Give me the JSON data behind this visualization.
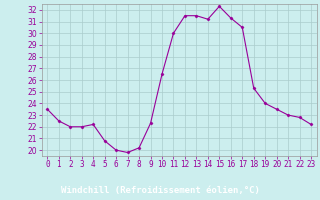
{
  "x": [
    0,
    1,
    2,
    3,
    4,
    5,
    6,
    7,
    8,
    9,
    10,
    11,
    12,
    13,
    14,
    15,
    16,
    17,
    18,
    19,
    20,
    21,
    22,
    23
  ],
  "y": [
    23.5,
    22.5,
    22.0,
    22.0,
    22.2,
    20.8,
    20.0,
    19.8,
    20.2,
    22.3,
    26.5,
    30.0,
    31.5,
    31.5,
    31.2,
    32.3,
    31.3,
    30.5,
    25.3,
    24.0,
    23.5,
    23.0,
    22.8,
    22.2
  ],
  "line_color": "#990099",
  "marker": "D",
  "marker_size": 1.5,
  "bg_color": "#cceeee",
  "grid_color": "#aacccc",
  "xlabel": "Windchill (Refroidissement éolien,°C)",
  "xlabel_bg": "#880088",
  "xlabel_fg": "#ffffff",
  "ylim": [
    19.5,
    32.5
  ],
  "xlim": [
    -0.5,
    23.5
  ],
  "yticks": [
    20,
    21,
    22,
    23,
    24,
    25,
    26,
    27,
    28,
    29,
    30,
    31,
    32
  ],
  "xtick_labels": [
    "0",
    "1",
    "2",
    "3",
    "4",
    "5",
    "6",
    "7",
    "8",
    "9",
    "10",
    "11",
    "12",
    "13",
    "14",
    "15",
    "16",
    "17",
    "18",
    "19",
    "20",
    "21",
    "22",
    "23"
  ],
  "tick_fontsize": 5.5,
  "xlabel_fontsize": 6.5
}
